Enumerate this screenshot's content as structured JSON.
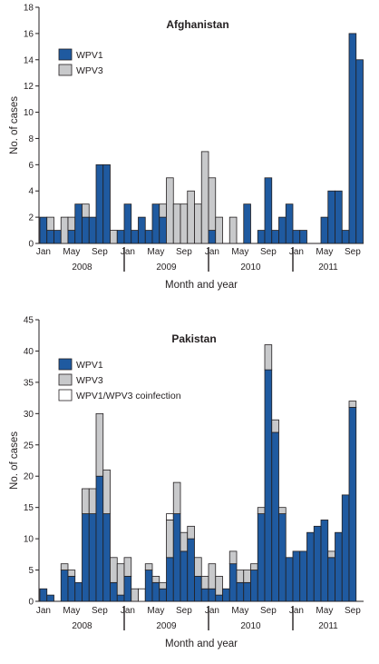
{
  "chart_data": [
    {
      "type": "bar",
      "stacked": true,
      "title": "Afghanistan",
      "xlabel": "Month and year",
      "ylabel": "No. of cases",
      "ylim": [
        0,
        18
      ],
      "yticks": [
        0,
        2,
        4,
        6,
        8,
        10,
        12,
        14,
        16,
        18
      ],
      "month_ticks": [
        "Jan",
        "May",
        "Sep",
        "Jan",
        "May",
        "Sep",
        "Jan",
        "May",
        "Sep",
        "Jan",
        "May",
        "Sep"
      ],
      "year_labels": [
        "2008",
        "2009",
        "2010",
        "2011"
      ],
      "legend": {
        "position": "top-left"
      },
      "series": [
        {
          "name": "WPV1",
          "color": "#1f5aa0",
          "values": [
            2,
            1,
            1,
            0,
            1,
            3,
            2,
            2,
            6,
            6,
            0,
            1,
            3,
            1,
            2,
            1,
            3,
            2,
            0,
            0,
            0,
            0,
            0,
            0,
            1,
            0,
            0,
            0,
            0,
            3,
            0,
            1,
            5,
            1,
            2,
            3,
            1,
            1,
            0,
            0,
            2,
            4,
            4,
            1,
            16,
            14
          ]
        },
        {
          "name": "WPV3",
          "color": "#c8c9cb",
          "values": [
            0,
            1,
            0,
            2,
            1,
            0,
            1,
            0,
            0,
            0,
            1,
            0,
            0,
            0,
            0,
            0,
            0,
            1,
            5,
            3,
            3,
            4,
            3,
            7,
            4,
            2,
            0,
            2,
            0,
            0,
            0,
            0,
            0,
            0,
            0,
            0,
            0,
            0,
            0,
            0,
            0,
            0,
            0,
            0,
            0,
            0
          ]
        }
      ]
    },
    {
      "type": "bar",
      "stacked": true,
      "title": "Pakistan",
      "xlabel": "Month and year",
      "ylabel": "No. of cases",
      "ylim": [
        0,
        45
      ],
      "yticks": [
        0,
        5,
        10,
        15,
        20,
        25,
        30,
        35,
        40,
        45
      ],
      "month_ticks": [
        "Jan",
        "May",
        "Sep",
        "Jan",
        "May",
        "Sep",
        "Jan",
        "May",
        "Sep",
        "Jan",
        "May",
        "Sep"
      ],
      "year_labels": [
        "2008",
        "2009",
        "2010",
        "2011"
      ],
      "legend": {
        "position": "top-left"
      },
      "series": [
        {
          "name": "WPV1",
          "color": "#1f5aa0",
          "values": [
            2,
            1,
            0,
            5,
            4,
            3,
            14,
            14,
            20,
            14,
            3,
            1,
            4,
            0,
            0,
            5,
            3,
            2,
            7,
            14,
            8,
            10,
            4,
            2,
            2,
            1,
            2,
            6,
            3,
            3,
            5,
            14,
            37,
            27,
            14,
            7,
            8,
            8,
            11,
            12,
            13,
            7,
            11,
            17,
            31
          ]
        },
        {
          "name": "WPV3",
          "color": "#c8c9cb",
          "values": [
            0,
            0,
            0,
            1,
            1,
            0,
            4,
            4,
            10,
            7,
            4,
            5,
            3,
            2,
            0,
            1,
            1,
            1,
            6,
            5,
            3,
            2,
            3,
            2,
            4,
            3,
            0,
            2,
            2,
            2,
            1,
            1,
            4,
            2,
            1,
            0,
            0,
            0,
            0,
            0,
            0,
            1,
            0,
            0,
            1
          ]
        },
        {
          "name": "WPV1/WPV3 coinfection",
          "color": "#ffffff",
          "values": [
            0,
            0,
            0,
            0,
            0,
            0,
            0,
            0,
            0,
            0,
            0,
            0,
            0,
            0,
            2,
            0,
            0,
            0,
            1,
            0,
            0,
            0,
            0,
            0,
            0,
            0,
            0,
            0,
            0,
            0,
            0,
            0,
            0,
            0,
            0,
            0,
            0,
            0,
            0,
            0,
            0,
            0,
            0,
            0,
            0
          ]
        }
      ]
    }
  ]
}
